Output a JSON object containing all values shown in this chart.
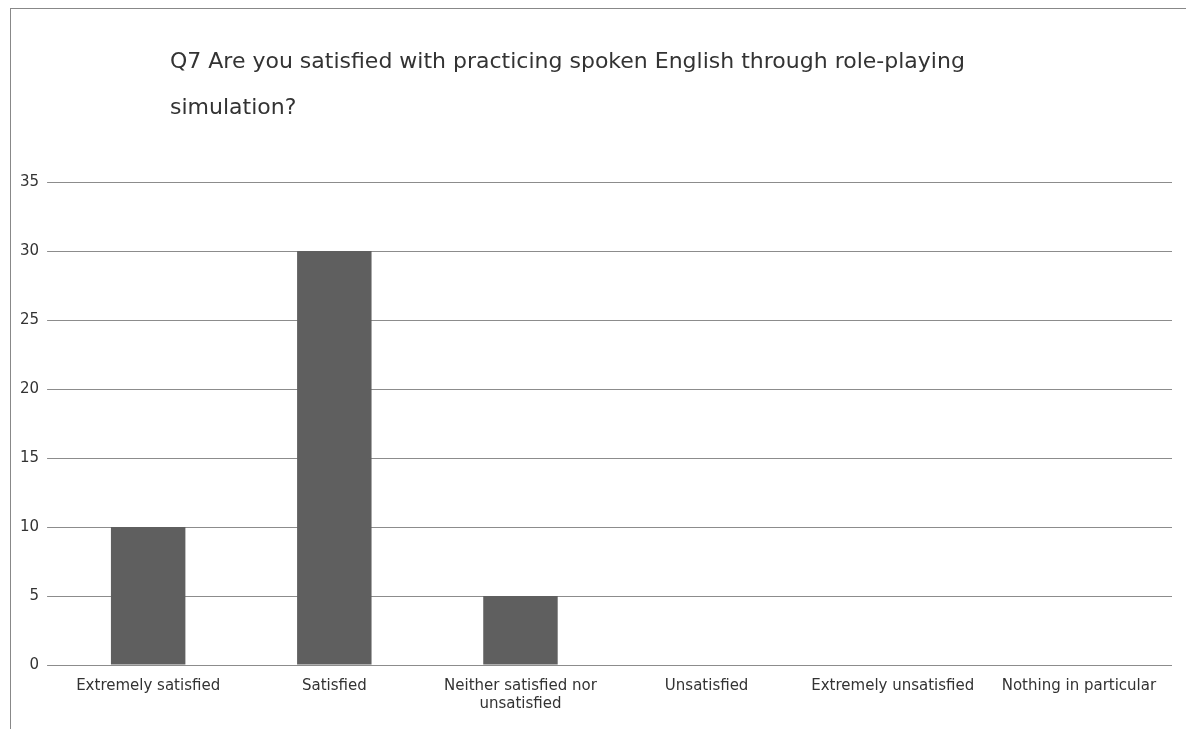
{
  "chart_data": {
    "type": "bar",
    "title": "Q7 Are you satisfied with practicing spoken English through role-playing simulation?",
    "categories": [
      "Extremely satisfied",
      "Satisfied",
      "Neither satisfied nor unsatisfied",
      "Unsatisfied",
      "Extremely unsatisfied",
      "Nothing in particular"
    ],
    "values": [
      10,
      30,
      5,
      0,
      0,
      0
    ],
    "color": "#5f5f5f",
    "ylim": [
      0,
      35
    ],
    "yticks": [
      0,
      5,
      10,
      15,
      20,
      25,
      30,
      35
    ],
    "grid": "y",
    "legend": false
  }
}
